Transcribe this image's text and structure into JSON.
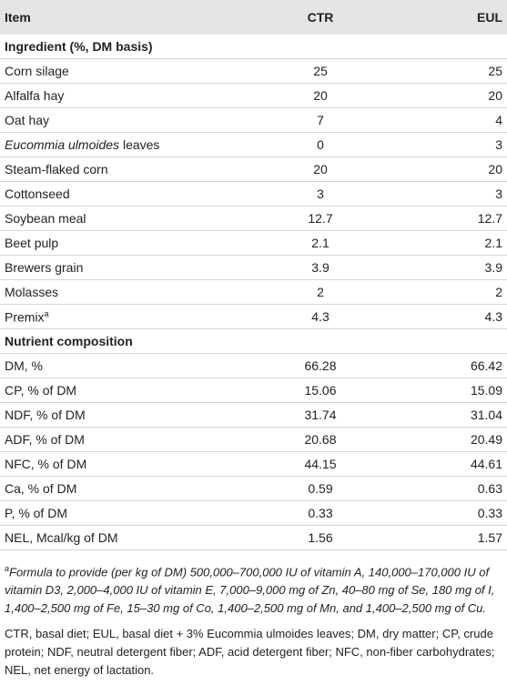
{
  "header": {
    "item": "Item",
    "ctr": "CTR",
    "eul": "EUL"
  },
  "sections": [
    {
      "title": "Ingredient (%, DM basis)",
      "rows": [
        [
          "Corn silage",
          "25",
          "25"
        ],
        [
          "Alfalfa hay",
          "20",
          "20"
        ],
        [
          "Oat hay",
          "7",
          "4"
        ],
        [
          {
            "italic": "Eucommia ulmoides",
            "text": " leaves"
          },
          "0",
          "3"
        ],
        [
          "Steam-flaked corn",
          "20",
          "20"
        ],
        [
          "Cottonseed",
          "3",
          "3"
        ],
        [
          "Soybean meal",
          "12.7",
          "12.7"
        ],
        [
          "Beet pulp",
          "2.1",
          "2.1"
        ],
        [
          "Brewers grain",
          "3.9",
          "3.9"
        ],
        [
          "Molasses",
          "2",
          "2"
        ],
        [
          {
            "text": "Premix",
            "sup": "a"
          },
          "4.3",
          "4.3"
        ]
      ]
    },
    {
      "title": "Nutrient composition",
      "rows": [
        [
          "DM, %",
          "66.28",
          "66.42"
        ],
        [
          "CP, % of DM",
          "15.06",
          "15.09"
        ],
        [
          "NDF, % of DM",
          "31.74",
          "31.04"
        ],
        [
          "ADF, % of DM",
          "20.68",
          "20.49"
        ],
        [
          "NFC, % of DM",
          "44.15",
          "44.61"
        ],
        [
          "Ca, % of DM",
          "0.59",
          "0.63"
        ],
        [
          "P, % of DM",
          "0.33",
          "0.33"
        ],
        [
          "NEL, Mcal/kg of DM",
          "1.56",
          "1.57"
        ]
      ]
    }
  ],
  "footnotes": [
    {
      "marker": "a",
      "text": "Formula to provide (per kg of DM) 500,000–700,000 IU of vitamin A, 140,000–170,000 IU of vitamin D3, 2,000–4,000 IU of vitamin E, 7,000–9,000 mg of Zn, 40–80 mg of Se, 180 mg of I, 1,400–2,500 mg of Fe, 15–30 mg of Co, 1,400–2,500 mg of Mn, and 1,400–2,500 mg of Cu."
    },
    "CTR, basal diet; EUL, basal diet + 3% Eucommia ulmoides leaves; DM, dry matter; CP, crude protein; NDF, neutral detergent fiber; ADF, acid detergent fiber; NFC, non-fiber carbohydrates; NEL, net energy of lactation."
  ]
}
